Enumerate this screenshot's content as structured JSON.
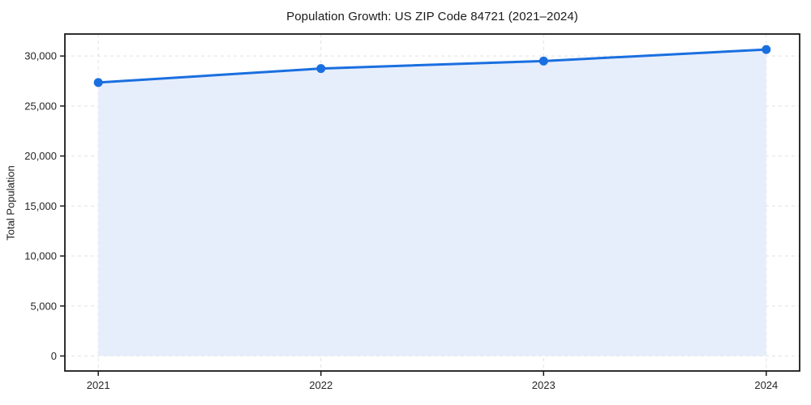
{
  "chart_data": {
    "type": "line",
    "title": "Population Growth: US ZIP Code 84721 (2021–2024)",
    "xlabel": "",
    "ylabel": "Total Population",
    "x": [
      2021,
      2022,
      2023,
      2024
    ],
    "series": [
      {
        "name": "Total Population",
        "values": [
          27350,
          28750,
          29500,
          30650
        ]
      }
    ],
    "area_fill": true,
    "area_baseline": 0,
    "xticks": [
      2021,
      2022,
      2023,
      2024
    ],
    "yticks": [
      0,
      5000,
      10000,
      15000,
      20000,
      25000,
      30000
    ],
    "xlim": [
      2020.85,
      2024.15
    ],
    "ylim": [
      -1500,
      32200
    ],
    "grid": true,
    "grid_style": "dashed",
    "legend": false,
    "colors": {
      "line": "#1a6fe0",
      "marker": "#1a6fe0",
      "area": "#e7eefb",
      "grid": "#e2e2e2",
      "spine": "#1a1a1a",
      "tick_text": "#262626",
      "title_text": "#1a1a1a",
      "background": "#ffffff"
    }
  }
}
